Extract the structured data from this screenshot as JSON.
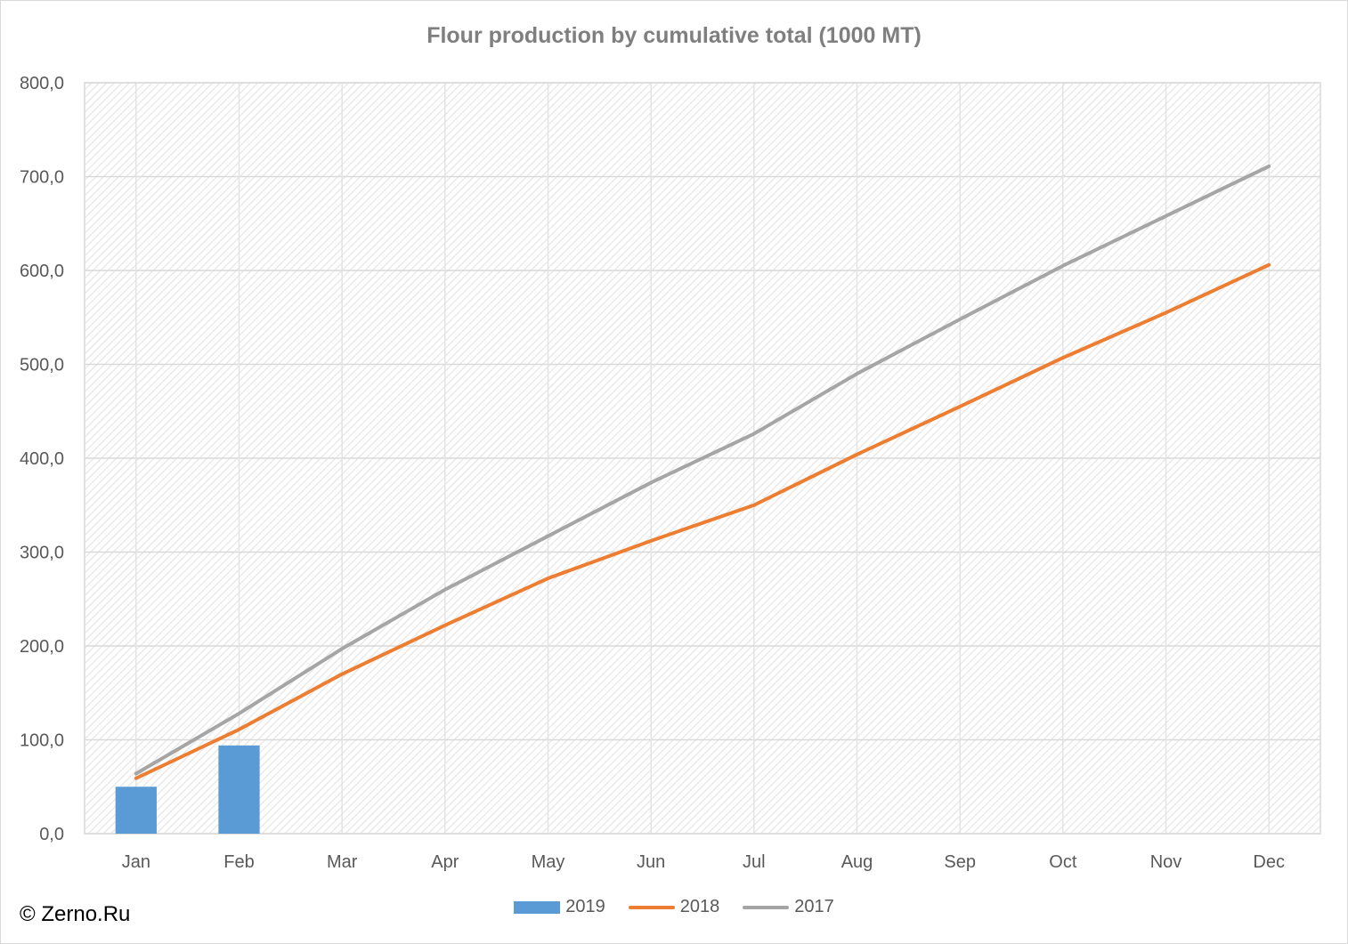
{
  "chart_data": {
    "type": "bar+line",
    "title": "Flour production by cumulative total (1000 MT)",
    "categories": [
      "Jan",
      "Feb",
      "Mar",
      "Apr",
      "May",
      "Jun",
      "Jul",
      "Aug",
      "Sep",
      "Oct",
      "Nov",
      "Dec"
    ],
    "y_ticks": [
      "0,0",
      "100,0",
      "200,0",
      "300,0",
      "400,0",
      "500,0",
      "600,0",
      "700,0",
      "800,0"
    ],
    "ylim": [
      0,
      800
    ],
    "grid": true,
    "legend_position": "bottom",
    "series": [
      {
        "name": "2019",
        "kind": "bar",
        "color": "#5b9bd5",
        "values": [
          50,
          94,
          null,
          null,
          null,
          null,
          null,
          null,
          null,
          null,
          null,
          null
        ]
      },
      {
        "name": "2018",
        "kind": "line",
        "color": "#ed7d31",
        "values": [
          59,
          111,
          170,
          222,
          272,
          312,
          350,
          404,
          455,
          507,
          555,
          606
        ]
      },
      {
        "name": "2017",
        "kind": "line",
        "color": "#a5a5a5",
        "values": [
          64,
          128,
          197,
          260,
          317,
          374,
          426,
          490,
          548,
          605,
          658,
          711
        ]
      }
    ]
  },
  "watermark": "© Zerno.Ru"
}
